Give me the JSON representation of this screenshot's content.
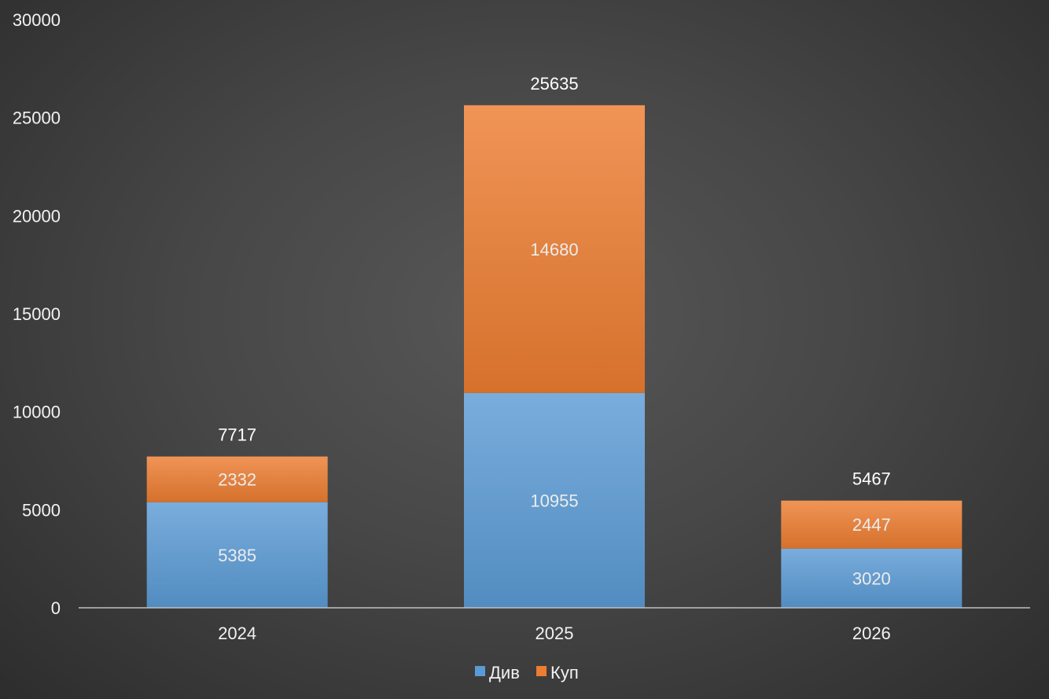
{
  "chart_data": {
    "type": "bar",
    "stacked": true,
    "categories": [
      "2024",
      "2025",
      "2026"
    ],
    "series": [
      {
        "name": "Див",
        "values": [
          5385,
          10955,
          3020
        ],
        "color": "#5b9bd5"
      },
      {
        "name": "Куп",
        "values": [
          2332,
          14680,
          2447
        ],
        "color": "#ed7d31"
      }
    ],
    "totals": [
      7717,
      25635,
      5467
    ],
    "ylim": [
      0,
      30000
    ],
    "yticks": [
      0,
      5000,
      10000,
      15000,
      20000,
      25000,
      30000
    ],
    "grid": false,
    "legend_position": "bottom",
    "background": "#474747"
  }
}
